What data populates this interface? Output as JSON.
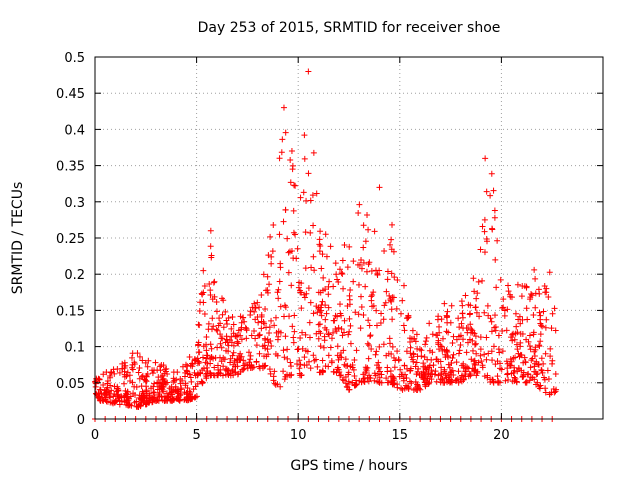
{
  "chart_data": {
    "type": "scatter",
    "title": "Day 253 of 2015, SRMTID for receiver shoe",
    "xlabel": "GPS time / hours",
    "ylabel": "SRMTID / TECUs",
    "xlim": [
      0,
      25
    ],
    "ylim": [
      0,
      0.5
    ],
    "xticks": [
      0,
      5,
      10,
      15,
      20
    ],
    "xtick_labels": [
      "0",
      "5",
      "10",
      "15",
      "20"
    ],
    "yticks": [
      0,
      0.05,
      0.1,
      0.15,
      0.2,
      0.25,
      0.3,
      0.35,
      0.4,
      0.45,
      0.5
    ],
    "ytick_labels": [
      "0",
      "0.05",
      "0.1",
      "0.15",
      "0.2",
      "0.25",
      "0.3",
      "0.35",
      "0.4",
      "0.45",
      "0.5"
    ],
    "grid": true,
    "marker": "+",
    "color": "#ff0000",
    "data_extent_hours": [
      0,
      22.7
    ],
    "envelope": {
      "x": [
        0,
        0.5,
        1,
        1.5,
        2,
        2.5,
        3,
        3.5,
        4,
        4.5,
        5,
        5.3,
        5.6,
        6,
        6.5,
        7,
        7.5,
        8,
        8.5,
        9,
        9.5,
        10,
        10.5,
        11,
        11.5,
        12,
        12.5,
        13,
        13.5,
        14,
        14.5,
        15,
        15.5,
        16,
        16.5,
        17,
        17.5,
        18,
        18.5,
        19,
        19.5,
        20,
        20.5,
        21,
        21.5,
        22,
        22.5,
        22.7
      ],
      "lo": [
        0.025,
        0.025,
        0.02,
        0.02,
        0.015,
        0.02,
        0.025,
        0.025,
        0.025,
        0.025,
        0.03,
        0.05,
        0.06,
        0.06,
        0.06,
        0.06,
        0.07,
        0.07,
        0.07,
        0.04,
        0.06,
        0.06,
        0.06,
        0.06,
        0.07,
        0.06,
        0.04,
        0.05,
        0.05,
        0.05,
        0.05,
        0.04,
        0.04,
        0.04,
        0.05,
        0.05,
        0.05,
        0.05,
        0.06,
        0.06,
        0.05,
        0.05,
        0.05,
        0.05,
        0.05,
        0.04,
        0.03,
        0.04
      ],
      "hi": [
        0.06,
        0.07,
        0.07,
        0.08,
        0.11,
        0.08,
        0.09,
        0.07,
        0.07,
        0.08,
        0.1,
        0.22,
        0.26,
        0.18,
        0.16,
        0.15,
        0.15,
        0.17,
        0.22,
        0.4,
        0.43,
        0.3,
        0.48,
        0.28,
        0.25,
        0.24,
        0.25,
        0.3,
        0.28,
        0.26,
        0.32,
        0.22,
        0.14,
        0.14,
        0.14,
        0.16,
        0.16,
        0.17,
        0.18,
        0.26,
        0.36,
        0.2,
        0.18,
        0.2,
        0.22,
        0.2,
        0.22,
        0.18
      ]
    },
    "zero_values_markers_hours": [
      0,
      0.5,
      1,
      1.5,
      2,
      2.5,
      3,
      3.5,
      4,
      4.5,
      5,
      5.5,
      6,
      6.5,
      7,
      7.5,
      8,
      8.5,
      9,
      9.5,
      10,
      10.5,
      11,
      11.5,
      12,
      12.5,
      13,
      13.5,
      14,
      14.5,
      15,
      15.5,
      16,
      16.5,
      17,
      17.5,
      18,
      18.5,
      19,
      19.5,
      20,
      20.5,
      21,
      21.5,
      22,
      22.5
    ],
    "notable_peaks": [
      {
        "x": 9.3,
        "y": 0.43
      },
      {
        "x": 10.5,
        "y": 0.48
      },
      {
        "x": 14.0,
        "y": 0.32
      },
      {
        "x": 19.2,
        "y": 0.36
      },
      {
        "x": 5.7,
        "y": 0.26
      }
    ]
  }
}
